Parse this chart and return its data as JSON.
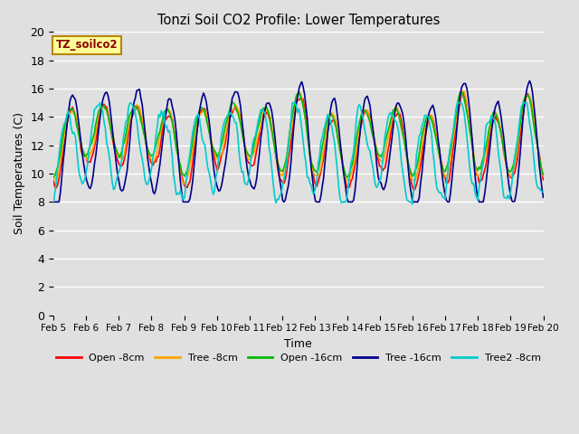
{
  "title": "Tonzi Soil CO2 Profile: Lower Temperatures",
  "xlabel": "Time",
  "ylabel": "Soil Temperatures (C)",
  "ylim": [
    0,
    20
  ],
  "yticks": [
    0,
    2,
    4,
    6,
    8,
    10,
    12,
    14,
    16,
    18,
    20
  ],
  "xtick_labels": [
    "Feb 5",
    "Feb 6",
    "Feb 7",
    "Feb 8",
    "Feb 9",
    "Feb 10",
    "Feb 11",
    "Feb 12",
    "Feb 13",
    "Feb 14",
    "Feb 15",
    "Feb 16",
    "Feb 17",
    "Feb 18",
    "Feb 19",
    "Feb 20"
  ],
  "bg_color": "#e0e0e0",
  "plot_bg_color": "#e0e0e0",
  "grid_color": "#ffffff",
  "annotation_text": "TZ_soilco2",
  "annotation_color": "#8b0000",
  "annotation_bg": "#ffff99",
  "annotation_border": "#b8860b",
  "series": {
    "Open -8cm": {
      "color": "#ff0000",
      "lw": 1.2
    },
    "Tree -8cm": {
      "color": "#ffa500",
      "lw": 1.2
    },
    "Open -16cm": {
      "color": "#00bb00",
      "lw": 1.2
    },
    "Tree -16cm": {
      "color": "#00008b",
      "lw": 1.2
    },
    "Tree2 -8cm": {
      "color": "#00cccc",
      "lw": 1.2
    }
  },
  "n_days": 15,
  "pts_per_day": 24
}
